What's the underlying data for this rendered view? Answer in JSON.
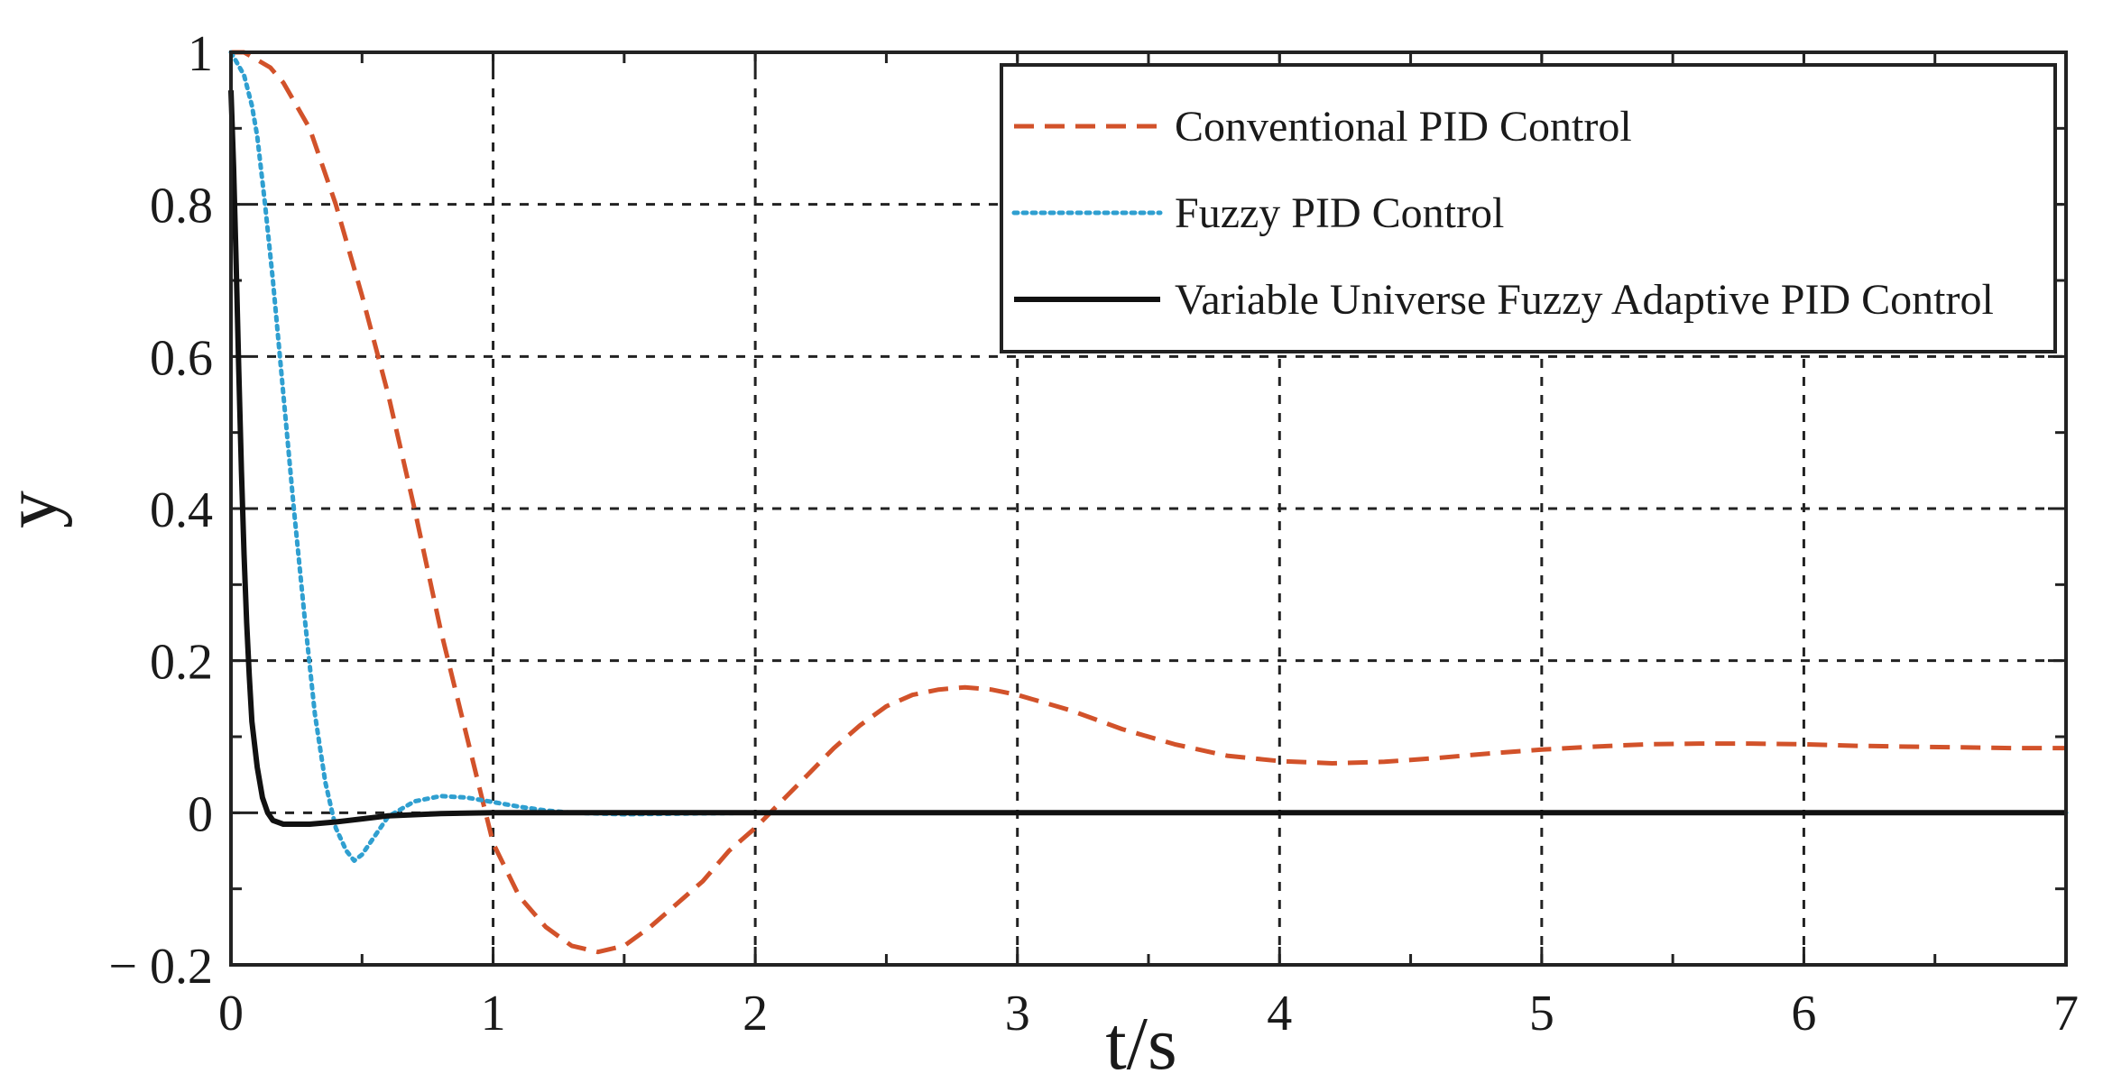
{
  "chart_data": {
    "type": "line",
    "title": "",
    "xlabel": "t/s",
    "ylabel": "y",
    "xlim": [
      0,
      7
    ],
    "ylim": [
      -0.2,
      1
    ],
    "grid": true,
    "legend_position": "top-right",
    "x_ticks": [
      0,
      1,
      2,
      3,
      4,
      5,
      6,
      7
    ],
    "y_ticks": [
      -0.2,
      0,
      0.2,
      0.4,
      0.6,
      0.8,
      1
    ],
    "x_tick_labels": [
      "0",
      "1",
      "2",
      "3",
      "4",
      "5",
      "6",
      "7"
    ],
    "y_tick_labels": [
      "− 0.2",
      "0",
      "0.2",
      "0.4",
      "0.6",
      "0.8",
      "1"
    ],
    "series": [
      {
        "name": "Conventional PID Control",
        "color": "#d2522a",
        "style": "dashed",
        "points": [
          [
            0,
            1
          ],
          [
            0.05,
            1.0
          ],
          [
            0.1,
            0.99
          ],
          [
            0.15,
            0.98
          ],
          [
            0.2,
            0.96
          ],
          [
            0.3,
            0.9
          ],
          [
            0.4,
            0.8
          ],
          [
            0.5,
            0.68
          ],
          [
            0.6,
            0.55
          ],
          [
            0.7,
            0.4
          ],
          [
            0.8,
            0.24
          ],
          [
            0.9,
            0.1
          ],
          [
            0.95,
            0.03
          ],
          [
            1.0,
            -0.04
          ],
          [
            1.1,
            -0.11
          ],
          [
            1.2,
            -0.15
          ],
          [
            1.3,
            -0.175
          ],
          [
            1.4,
            -0.183
          ],
          [
            1.5,
            -0.175
          ],
          [
            1.6,
            -0.15
          ],
          [
            1.7,
            -0.12
          ],
          [
            1.8,
            -0.09
          ],
          [
            1.9,
            -0.05
          ],
          [
            2.0,
            -0.02
          ],
          [
            2.1,
            0.015
          ],
          [
            2.2,
            0.05
          ],
          [
            2.3,
            0.085
          ],
          [
            2.4,
            0.115
          ],
          [
            2.5,
            0.14
          ],
          [
            2.6,
            0.155
          ],
          [
            2.7,
            0.162
          ],
          [
            2.8,
            0.165
          ],
          [
            2.9,
            0.162
          ],
          [
            3.0,
            0.155
          ],
          [
            3.2,
            0.135
          ],
          [
            3.4,
            0.11
          ],
          [
            3.6,
            0.09
          ],
          [
            3.8,
            0.075
          ],
          [
            4.0,
            0.068
          ],
          [
            4.2,
            0.065
          ],
          [
            4.4,
            0.067
          ],
          [
            4.6,
            0.072
          ],
          [
            4.8,
            0.078
          ],
          [
            5.0,
            0.083
          ],
          [
            5.2,
            0.087
          ],
          [
            5.4,
            0.09
          ],
          [
            5.6,
            0.091
          ],
          [
            5.8,
            0.091
          ],
          [
            6.0,
            0.09
          ],
          [
            6.2,
            0.088
          ],
          [
            6.4,
            0.087
          ],
          [
            6.6,
            0.086
          ],
          [
            6.8,
            0.085
          ],
          [
            7.0,
            0.085
          ]
        ]
      },
      {
        "name": "Fuzzy PID Control",
        "color": "#2f9fd0",
        "style": "dotted",
        "points": [
          [
            0,
            1
          ],
          [
            0.05,
            0.97
          ],
          [
            0.08,
            0.93
          ],
          [
            0.1,
            0.89
          ],
          [
            0.13,
            0.8
          ],
          [
            0.16,
            0.7
          ],
          [
            0.2,
            0.55
          ],
          [
            0.24,
            0.4
          ],
          [
            0.28,
            0.26
          ],
          [
            0.32,
            0.13
          ],
          [
            0.36,
            0.04
          ],
          [
            0.4,
            -0.02
          ],
          [
            0.44,
            -0.05
          ],
          [
            0.47,
            -0.063
          ],
          [
            0.5,
            -0.055
          ],
          [
            0.55,
            -0.03
          ],
          [
            0.6,
            -0.005
          ],
          [
            0.7,
            0.015
          ],
          [
            0.8,
            0.022
          ],
          [
            0.9,
            0.02
          ],
          [
            1.0,
            0.014
          ],
          [
            1.1,
            0.008
          ],
          [
            1.2,
            0.003
          ],
          [
            1.3,
            0.0
          ],
          [
            1.5,
            -0.002
          ],
          [
            2.0,
            0.0
          ],
          [
            7.0,
            0.0
          ]
        ]
      },
      {
        "name": "Variable Universe Fuzzy Adaptive PID Control",
        "color": "#111111",
        "style": "solid",
        "points": [
          [
            0,
            0.95
          ],
          [
            0.01,
            0.85
          ],
          [
            0.02,
            0.72
          ],
          [
            0.03,
            0.58
          ],
          [
            0.04,
            0.45
          ],
          [
            0.05,
            0.34
          ],
          [
            0.06,
            0.25
          ],
          [
            0.07,
            0.18
          ],
          [
            0.08,
            0.12
          ],
          [
            0.1,
            0.06
          ],
          [
            0.12,
            0.02
          ],
          [
            0.14,
            0.0
          ],
          [
            0.16,
            -0.01
          ],
          [
            0.2,
            -0.015
          ],
          [
            0.3,
            -0.015
          ],
          [
            0.4,
            -0.012
          ],
          [
            0.5,
            -0.008
          ],
          [
            0.6,
            -0.004
          ],
          [
            0.8,
            -0.001
          ],
          [
            1.0,
            0.0
          ],
          [
            7.0,
            0.0
          ]
        ]
      }
    ]
  }
}
